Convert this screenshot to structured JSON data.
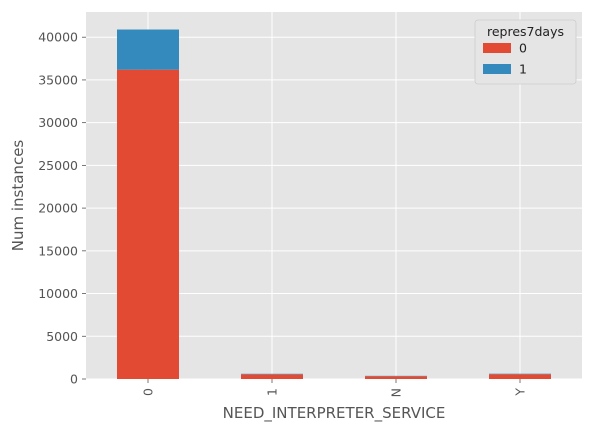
{
  "chart_data": {
    "type": "bar",
    "stacked": true,
    "categories": [
      "0",
      "1",
      "N",
      "Y"
    ],
    "series": [
      {
        "name": "0",
        "values": [
          36200,
          550,
          330,
          560
        ],
        "color": "#E24A33"
      },
      {
        "name": "1",
        "values": [
          4700,
          60,
          40,
          60
        ],
        "color": "#348ABD"
      }
    ],
    "xlabel": "NEED_INTERPRETER_SERVICE",
    "ylabel": "Num instances",
    "ylim": [
      0,
      42950
    ],
    "yticks": [
      0,
      5000,
      10000,
      15000,
      20000,
      25000,
      30000,
      35000,
      40000
    ],
    "grid": true,
    "legend": {
      "title": "repres7days",
      "placement": "top-right"
    },
    "style": {
      "background": "#E5E5E5",
      "grid_color": "#FFFFFF"
    }
  }
}
